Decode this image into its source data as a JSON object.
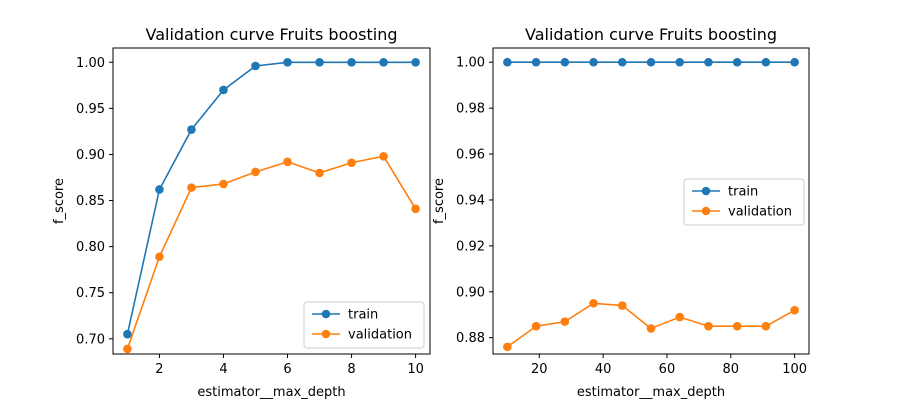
{
  "chart_data": [
    {
      "type": "line",
      "title": "Validation curve Fruits boosting",
      "xlabel": "estimator__max_depth",
      "ylabel": "f_score",
      "xlim": [
        0.55,
        10.45
      ],
      "ylim": [
        0.6835,
        1.0155
      ],
      "xticks": [
        2,
        4,
        6,
        8,
        10
      ],
      "yticks": [
        0.7,
        0.75,
        0.8,
        0.85,
        0.9,
        0.95,
        1.0
      ],
      "ytick_decimals": 2,
      "legend": "lower-right",
      "x": [
        1,
        2,
        3,
        4,
        5,
        6,
        7,
        8,
        9,
        10
      ],
      "series": [
        {
          "name": "train",
          "color": "#1f77b4",
          "values": [
            0.705,
            0.862,
            0.927,
            0.97,
            0.996,
            1.0,
            1.0,
            1.0,
            1.0,
            1.0
          ]
        },
        {
          "name": "validation",
          "color": "#ff7f0e",
          "values": [
            0.689,
            0.789,
            0.864,
            0.868,
            0.881,
            0.892,
            0.88,
            0.891,
            0.898,
            0.841
          ]
        }
      ]
    },
    {
      "type": "line",
      "title": "Validation curve Fruits boosting",
      "xlabel": "estimator__max_depth",
      "ylabel": "f_score",
      "xlim": [
        5.5,
        104.5
      ],
      "ylim": [
        0.8729,
        1.0062
      ],
      "xticks": [
        20,
        40,
        60,
        80,
        100
      ],
      "yticks": [
        0.88,
        0.9,
        0.92,
        0.94,
        0.96,
        0.98,
        1.0
      ],
      "ytick_decimals": 2,
      "legend": "center-right",
      "x": [
        10,
        19,
        28,
        37,
        46,
        55,
        64,
        73,
        82,
        91,
        100
      ],
      "series": [
        {
          "name": "train",
          "color": "#1f77b4",
          "values": [
            1.0,
            1.0,
            1.0,
            1.0,
            1.0,
            1.0,
            1.0,
            1.0,
            1.0,
            1.0,
            1.0
          ]
        },
        {
          "name": "validation",
          "color": "#ff7f0e",
          "values": [
            0.876,
            0.885,
            0.887,
            0.895,
            0.894,
            0.884,
            0.889,
            0.885,
            0.885,
            0.885,
            0.892
          ]
        }
      ]
    }
  ]
}
